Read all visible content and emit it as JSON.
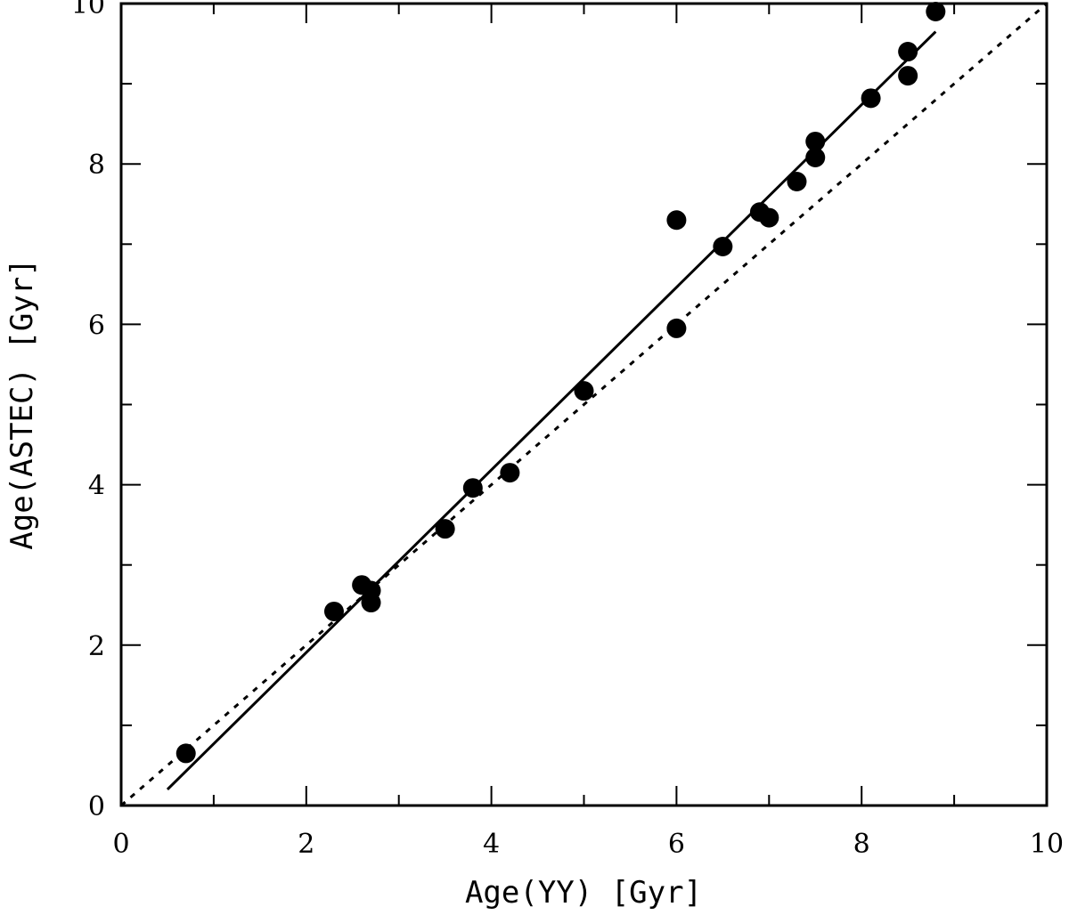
{
  "chart_data": {
    "type": "scatter",
    "xlabel": "Age(YY) [Gyr]",
    "ylabel": "Age(ASTEC) [Gyr]",
    "xlim": [
      0,
      10
    ],
    "ylim": [
      0,
      10
    ],
    "x_ticks": [
      "0",
      "2",
      "4",
      "6",
      "8",
      "10"
    ],
    "y_ticks": [
      "0",
      "2",
      "4",
      "6",
      "8",
      "10"
    ],
    "grid": false,
    "points": [
      {
        "x": 0.7,
        "y": 0.65
      },
      {
        "x": 2.3,
        "y": 2.42
      },
      {
        "x": 2.6,
        "y": 2.75
      },
      {
        "x": 2.7,
        "y": 2.68
      },
      {
        "x": 2.7,
        "y": 2.53
      },
      {
        "x": 3.5,
        "y": 3.45
      },
      {
        "x": 3.8,
        "y": 3.96
      },
      {
        "x": 4.2,
        "y": 4.15
      },
      {
        "x": 5.0,
        "y": 5.17
      },
      {
        "x": 6.0,
        "y": 7.3
      },
      {
        "x": 6.0,
        "y": 5.95
      },
      {
        "x": 6.5,
        "y": 6.97
      },
      {
        "x": 6.9,
        "y": 7.4
      },
      {
        "x": 7.0,
        "y": 7.33
      },
      {
        "x": 7.3,
        "y": 7.78
      },
      {
        "x": 7.5,
        "y": 8.08
      },
      {
        "x": 7.5,
        "y": 8.28
      },
      {
        "x": 8.1,
        "y": 8.82
      },
      {
        "x": 8.5,
        "y": 9.1
      },
      {
        "x": 8.5,
        "y": 9.4
      },
      {
        "x": 8.8,
        "y": 9.9
      }
    ],
    "lines": [
      {
        "style": "solid",
        "x": [
          0.5,
          8.8
        ],
        "y": [
          0.2,
          9.65
        ]
      },
      {
        "style": "dotted",
        "x": [
          0,
          10
        ],
        "y": [
          0,
          10
        ]
      }
    ]
  }
}
